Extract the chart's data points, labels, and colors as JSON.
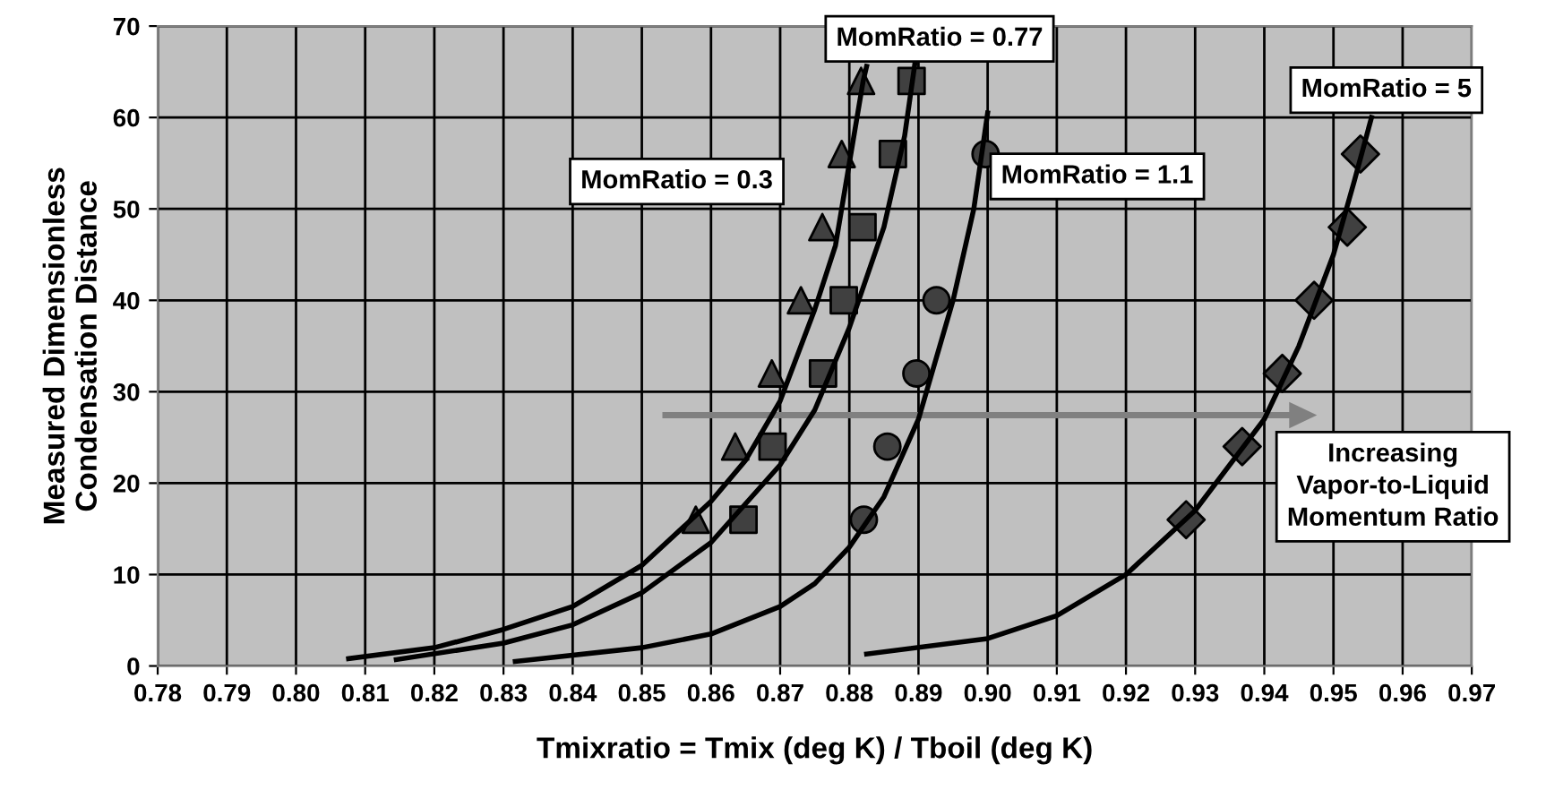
{
  "chart_data": {
    "type": "scatter",
    "xlabel": "Tmixratio = Tmix (deg K) / Tboil (deg K)",
    "ylabel": "Measured Dimensionless\nCondensation Distance",
    "xlim": [
      0.78,
      0.97
    ],
    "ylim": [
      0,
      70
    ],
    "xticks": [
      {
        "value": 0.78,
        "label": "0.78"
      },
      {
        "value": 0.79,
        "label": "0.79"
      },
      {
        "value": 0.8,
        "label": "0.80"
      },
      {
        "value": 0.81,
        "label": "0.81"
      },
      {
        "value": 0.82,
        "label": "0.82"
      },
      {
        "value": 0.83,
        "label": "0.83"
      },
      {
        "value": 0.84,
        "label": "0.84"
      },
      {
        "value": 0.85,
        "label": "0.85"
      },
      {
        "value": 0.86,
        "label": "0.86"
      },
      {
        "value": 0.87,
        "label": "0.87"
      },
      {
        "value": 0.88,
        "label": "0.88"
      },
      {
        "value": 0.89,
        "label": "0.89"
      },
      {
        "value": 0.9,
        "label": "0.90"
      },
      {
        "value": 0.91,
        "label": "0.91"
      },
      {
        "value": 0.92,
        "label": "0.92"
      },
      {
        "value": 0.93,
        "label": "0.93"
      },
      {
        "value": 0.94,
        "label": "0.94"
      },
      {
        "value": 0.95,
        "label": "0.95"
      },
      {
        "value": 0.96,
        "label": "0.96"
      },
      {
        "value": 0.97,
        "label": "0.97"
      }
    ],
    "yticks": [
      0,
      10,
      20,
      30,
      40,
      50,
      60,
      70
    ],
    "grid": true,
    "legend": false,
    "series": [
      {
        "type": "line",
        "marker": "none",
        "line_style": "solid",
        "color": "#000000",
        "x": [
          0.8076,
          0.82,
          0.83,
          0.84,
          0.85,
          0.86,
          0.865,
          0.87,
          0.875,
          0.878,
          0.88,
          0.882,
          0.8825
        ],
        "values": [
          0.8,
          2,
          4,
          6.5,
          11,
          18,
          22.5,
          29,
          39,
          46,
          55,
          64,
          65.6
        ]
      },
      {
        "type": "line",
        "marker": "none",
        "line_style": "solid",
        "color": "#000000",
        "x": [
          0.8145,
          0.83,
          0.84,
          0.85,
          0.86,
          0.87,
          0.875,
          0.88,
          0.885,
          0.888,
          0.8895
        ],
        "values": [
          0.7,
          2.5,
          4.5,
          8,
          13.5,
          22,
          28,
          37,
          48,
          58,
          66
        ]
      },
      {
        "type": "line",
        "marker": "none",
        "line_style": "solid",
        "color": "#000000",
        "x": [
          0.8317,
          0.85,
          0.86,
          0.87,
          0.875,
          0.88,
          0.885,
          0.89,
          0.895,
          0.898,
          0.9
        ],
        "values": [
          0.5,
          2,
          3.5,
          6.5,
          9,
          13,
          18.5,
          27,
          40,
          50,
          60.5
        ]
      },
      {
        "type": "line",
        "marker": "none",
        "line_style": "solid",
        "color": "#000000",
        "x": [
          0.8825,
          0.9,
          0.91,
          0.92,
          0.93,
          0.94,
          0.945,
          0.95,
          0.953,
          0.9555
        ],
        "values": [
          1.3,
          3,
          5.5,
          10,
          17,
          27,
          35,
          45,
          53,
          60
        ]
      },
      {
        "marker": "triangle",
        "color": "#404040",
        "x": [
          0.8578,
          0.8635,
          0.8688,
          0.873,
          0.8761,
          0.8789,
          0.8817
        ],
        "values": [
          16,
          24,
          32,
          40,
          48,
          56,
          64
        ]
      },
      {
        "marker": "square",
        "color": "#404040",
        "x": [
          0.8647,
          0.8689,
          0.8762,
          0.8792,
          0.8819,
          0.8863,
          0.889
        ],
        "values": [
          16,
          24,
          32,
          40,
          48,
          56,
          64
        ]
      },
      {
        "marker": "circle",
        "color": "#404040",
        "x": [
          0.8821,
          0.8855,
          0.8897,
          0.8926,
          0.8997
        ],
        "values": [
          16,
          24,
          32,
          40,
          56
        ]
      },
      {
        "marker": "diamond",
        "color": "#404040",
        "x": [
          0.9287,
          0.9368,
          0.9426,
          0.9472,
          0.952,
          0.9539
        ],
        "values": [
          16,
          24,
          32,
          40,
          48,
          56
        ]
      }
    ],
    "annotations": [
      "MomRatio = 0.3",
      "MomRatio = 0.77",
      "MomRatio = 1.1",
      "MomRatio = 5",
      "Increasing\nVapor-to-Liquid\nMomentum Ratio"
    ]
  }
}
